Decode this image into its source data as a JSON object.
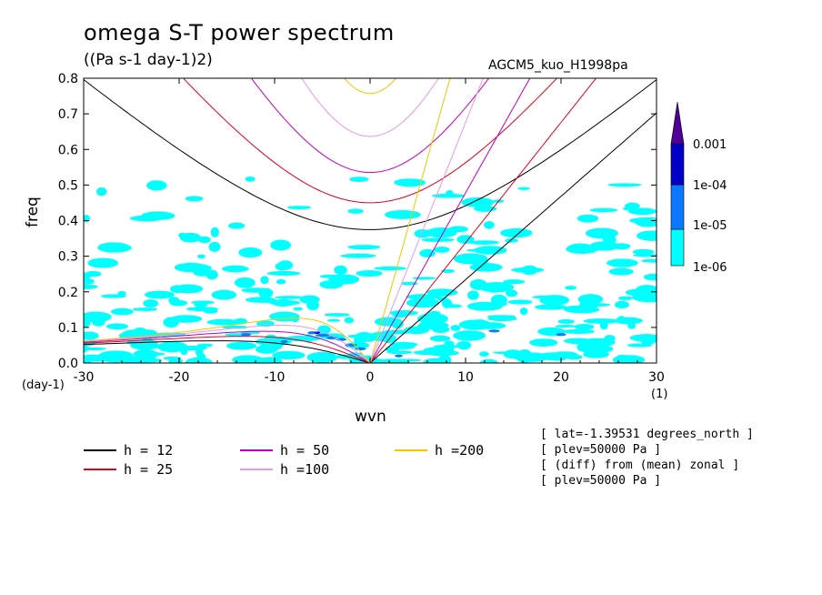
{
  "title": "omega S-T power spectrum",
  "units": "((Pa s-1 day-1)2)",
  "run_name": "AGCM5_kuo_H1998pa",
  "y_unit": "(day-1)",
  "x_unit": "(1)",
  "info_lines": [
    "[ lat=-1.39531 degrees_north ]",
    "[ plev=50000 Pa ]",
    "[ (diff) from (mean) zonal ]",
    "[ plev=50000 Pa ]"
  ],
  "colors": {
    "h12": "#000000",
    "h25": "#e0001c",
    "h50": "#c000c0",
    "h100": "#e49ae4",
    "h200": "#f0c800",
    "level1": "#00ffff",
    "level2": "#0a78ff",
    "level3": "#0000c8",
    "level4": "#500096"
  },
  "legend": [
    {
      "label": "h = 12",
      "color": "#000000"
    },
    {
      "label": "h = 25",
      "color": "#e0001c"
    },
    {
      "label": "h = 50",
      "color": "#c000c0"
    },
    {
      "label": "h =100",
      "color": "#e49ae4"
    },
    {
      "label": "h =200",
      "color": "#f0c800"
    }
  ],
  "colorbar": {
    "labels": [
      "0.001",
      "1e-04",
      "1e-05",
      "1e-06"
    ]
  },
  "chart_data": {
    "type": "heatmap",
    "xlabel": "wvn",
    "ylabel": "freq",
    "xlim": [
      -30,
      30
    ],
    "ylim": [
      0,
      0.8
    ],
    "xticks": [
      -30,
      -20,
      -10,
      0,
      10,
      20,
      30
    ],
    "xtick_labels": [
      "-30",
      "-20",
      "-10",
      "0",
      "10",
      "20",
      "30"
    ],
    "yticks": [
      0,
      0.1,
      0.2,
      0.3,
      0.4,
      0.5,
      0.6,
      0.7,
      0.8
    ],
    "ytick_labels": [
      "0.0",
      "0.1",
      "0.2",
      "0.3",
      "0.4",
      "0.5",
      "0.6",
      "0.7",
      "0.8"
    ],
    "contour_levels": [
      1e-06,
      1e-05,
      0.0001,
      0.001
    ],
    "dispersion_curves": [
      {
        "name": "h = 12",
        "equivalent_depth": 12
      },
      {
        "name": "h = 25",
        "equivalent_depth": 25
      },
      {
        "name": "h = 50",
        "equivalent_depth": 50
      },
      {
        "name": "h =100",
        "equivalent_depth": 100
      },
      {
        "name": "h =200",
        "equivalent_depth": 200
      }
    ]
  }
}
